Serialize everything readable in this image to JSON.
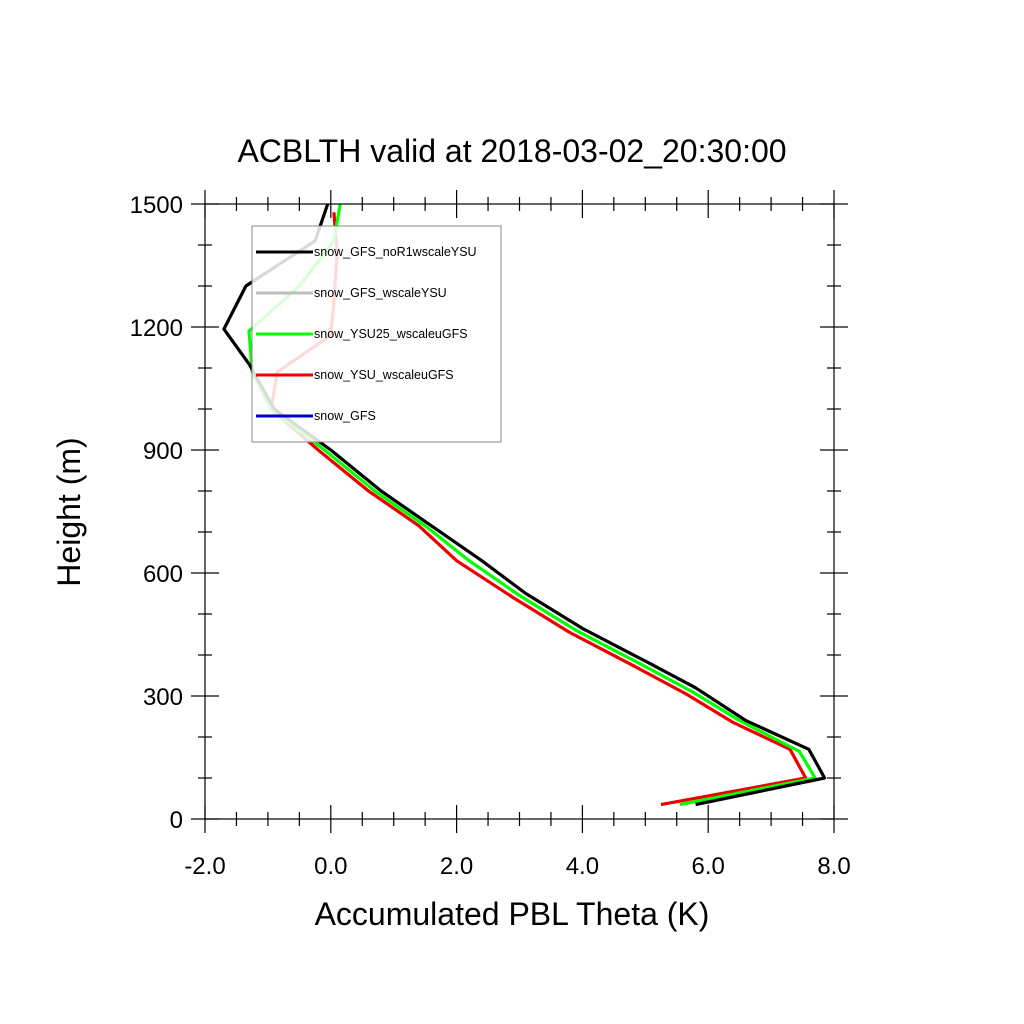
{
  "chart_data": {
    "type": "line",
    "title": "ACBLTH valid at 2018-03-02_20:30:00",
    "xlabel": "Accumulated PBL Theta (K)",
    "ylabel": "Height (m)",
    "xlim": [
      -2.0,
      8.0
    ],
    "ylim": [
      0,
      1500
    ],
    "x_ticks": [
      "-2.0",
      "0.0",
      "2.0",
      "4.0",
      "6.0",
      "8.0"
    ],
    "y_ticks": [
      "0",
      "300",
      "600",
      "900",
      "1200",
      "1500"
    ],
    "grid": false,
    "legend_position": "top-left",
    "series": [
      {
        "name": "snow_GFS_noR1wscaleYSU",
        "color": "#000000",
        "points": [
          [
            -0.05,
            1500
          ],
          [
            -0.25,
            1410
          ],
          [
            -1.35,
            1300
          ],
          [
            -1.7,
            1195
          ],
          [
            -1.3,
            1110
          ],
          [
            -0.9,
            1000
          ],
          [
            0.0,
            900
          ],
          [
            0.8,
            800
          ],
          [
            1.6,
            715
          ],
          [
            2.4,
            630
          ],
          [
            3.1,
            550
          ],
          [
            4.0,
            465
          ],
          [
            5.0,
            385
          ],
          [
            5.8,
            320
          ],
          [
            6.6,
            240
          ],
          [
            7.6,
            170
          ],
          [
            7.85,
            100
          ],
          [
            5.8,
            35
          ]
        ]
      },
      {
        "name": "snow_GFS_wscaleYSU",
        "color": "#bdbdbd",
        "points": []
      },
      {
        "name": "snow_YSU25_wscaleuGFS",
        "color": "#00ff00",
        "points": [
          [
            0.15,
            1500
          ],
          [
            0.05,
            1410
          ],
          [
            -0.5,
            1300
          ],
          [
            -1.3,
            1190
          ],
          [
            -1.25,
            1090
          ],
          [
            -0.95,
            1000
          ],
          [
            -0.1,
            900
          ],
          [
            0.7,
            800
          ],
          [
            1.5,
            715
          ],
          [
            2.2,
            630
          ],
          [
            3.0,
            545
          ],
          [
            3.9,
            460
          ],
          [
            4.9,
            380
          ],
          [
            5.75,
            310
          ],
          [
            6.5,
            240
          ],
          [
            7.45,
            165
          ],
          [
            7.7,
            100
          ],
          [
            5.55,
            35
          ]
        ]
      },
      {
        "name": "snow_YSU_wscaleuGFS",
        "color": "#ee0000",
        "points": [
          [
            0.05,
            1480
          ],
          [
            0.1,
            1380
          ],
          [
            0.05,
            1260
          ],
          [
            0.0,
            1180
          ],
          [
            -0.85,
            1090
          ],
          [
            -0.95,
            1000
          ],
          [
            -0.2,
            900
          ],
          [
            0.6,
            800
          ],
          [
            1.4,
            715
          ],
          [
            2.0,
            630
          ],
          [
            2.9,
            540
          ],
          [
            3.8,
            455
          ],
          [
            4.8,
            375
          ],
          [
            5.65,
            305
          ],
          [
            6.4,
            235
          ],
          [
            7.3,
            170
          ],
          [
            7.55,
            100
          ],
          [
            5.25,
            35
          ]
        ]
      },
      {
        "name": "snow_GFS",
        "color": "#0000cc",
        "points": []
      }
    ]
  }
}
